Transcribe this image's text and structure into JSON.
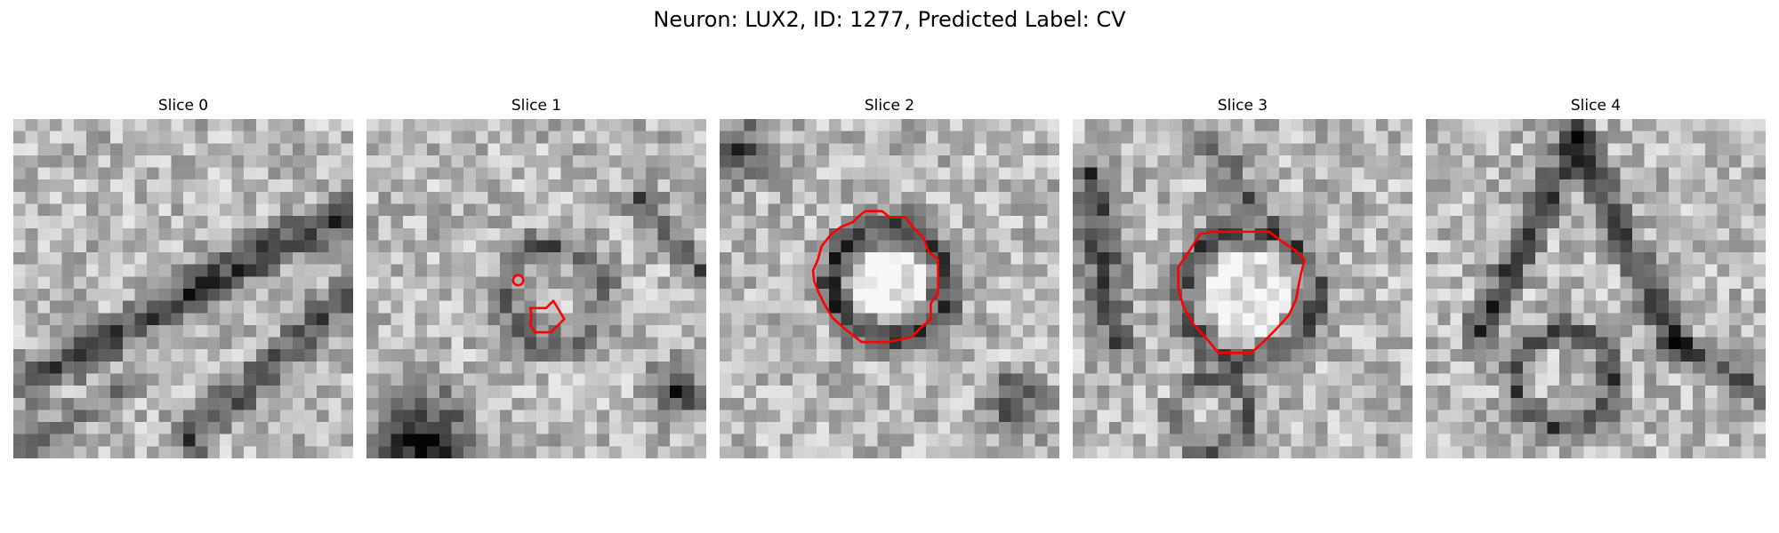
{
  "figure": {
    "title": "Neuron: LUX2, ID: 1277, Predicted Label: CV",
    "contour_color": "#ff0000",
    "colormap": "gray"
  },
  "panels": [
    {
      "title": "Slice 0",
      "has_contour": false
    },
    {
      "title": "Slice 1",
      "has_contour": true
    },
    {
      "title": "Slice 2",
      "has_contour": true
    },
    {
      "title": "Slice 3",
      "has_contour": true
    },
    {
      "title": "Slice 4",
      "has_contour": false
    }
  ]
}
